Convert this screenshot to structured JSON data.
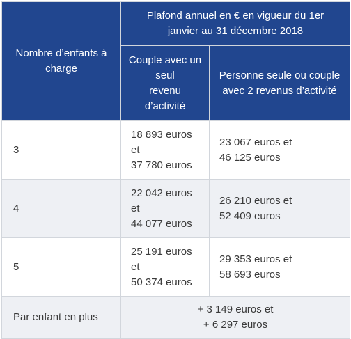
{
  "header": {
    "col1": "Nombre d’enfants à charge",
    "group": [
      "Plafond annuel en € en vigueur du 1er",
      "janvier au 31 décembre 2018"
    ],
    "sub1": [
      "Couple avec un",
      "seul",
      "revenu",
      "d’activité"
    ],
    "sub2": [
      "Personne seule ou couple",
      "avec 2 revenus d’activité"
    ]
  },
  "rows": [
    {
      "children": "3",
      "couple_single_income": [
        "18 893 euros",
        "et",
        "37 780 euros"
      ],
      "single_or_two_incomes": [
        "23 067 euros et",
        "46 125 euros"
      ]
    },
    {
      "children": "4",
      "couple_single_income": [
        "22 042 euros",
        "et",
        "44 077 euros"
      ],
      "single_or_two_incomes": [
        "26 210 euros et",
        "52 409 euros"
      ]
    },
    {
      "children": "5",
      "couple_single_income": [
        "25 191 euros",
        "et",
        "50 374 euros"
      ],
      "single_or_two_incomes": [
        "29 353 euros et",
        "58 693 euros"
      ]
    }
  ],
  "footer": {
    "label": "Par enfant en plus",
    "value": [
      "+ 3 149 euros et",
      "+ 6 297 euros"
    ]
  },
  "colors": {
    "header_bg": "#21468f",
    "alt_row_bg": "#eef0f4",
    "border": "#d2d6dc"
  }
}
